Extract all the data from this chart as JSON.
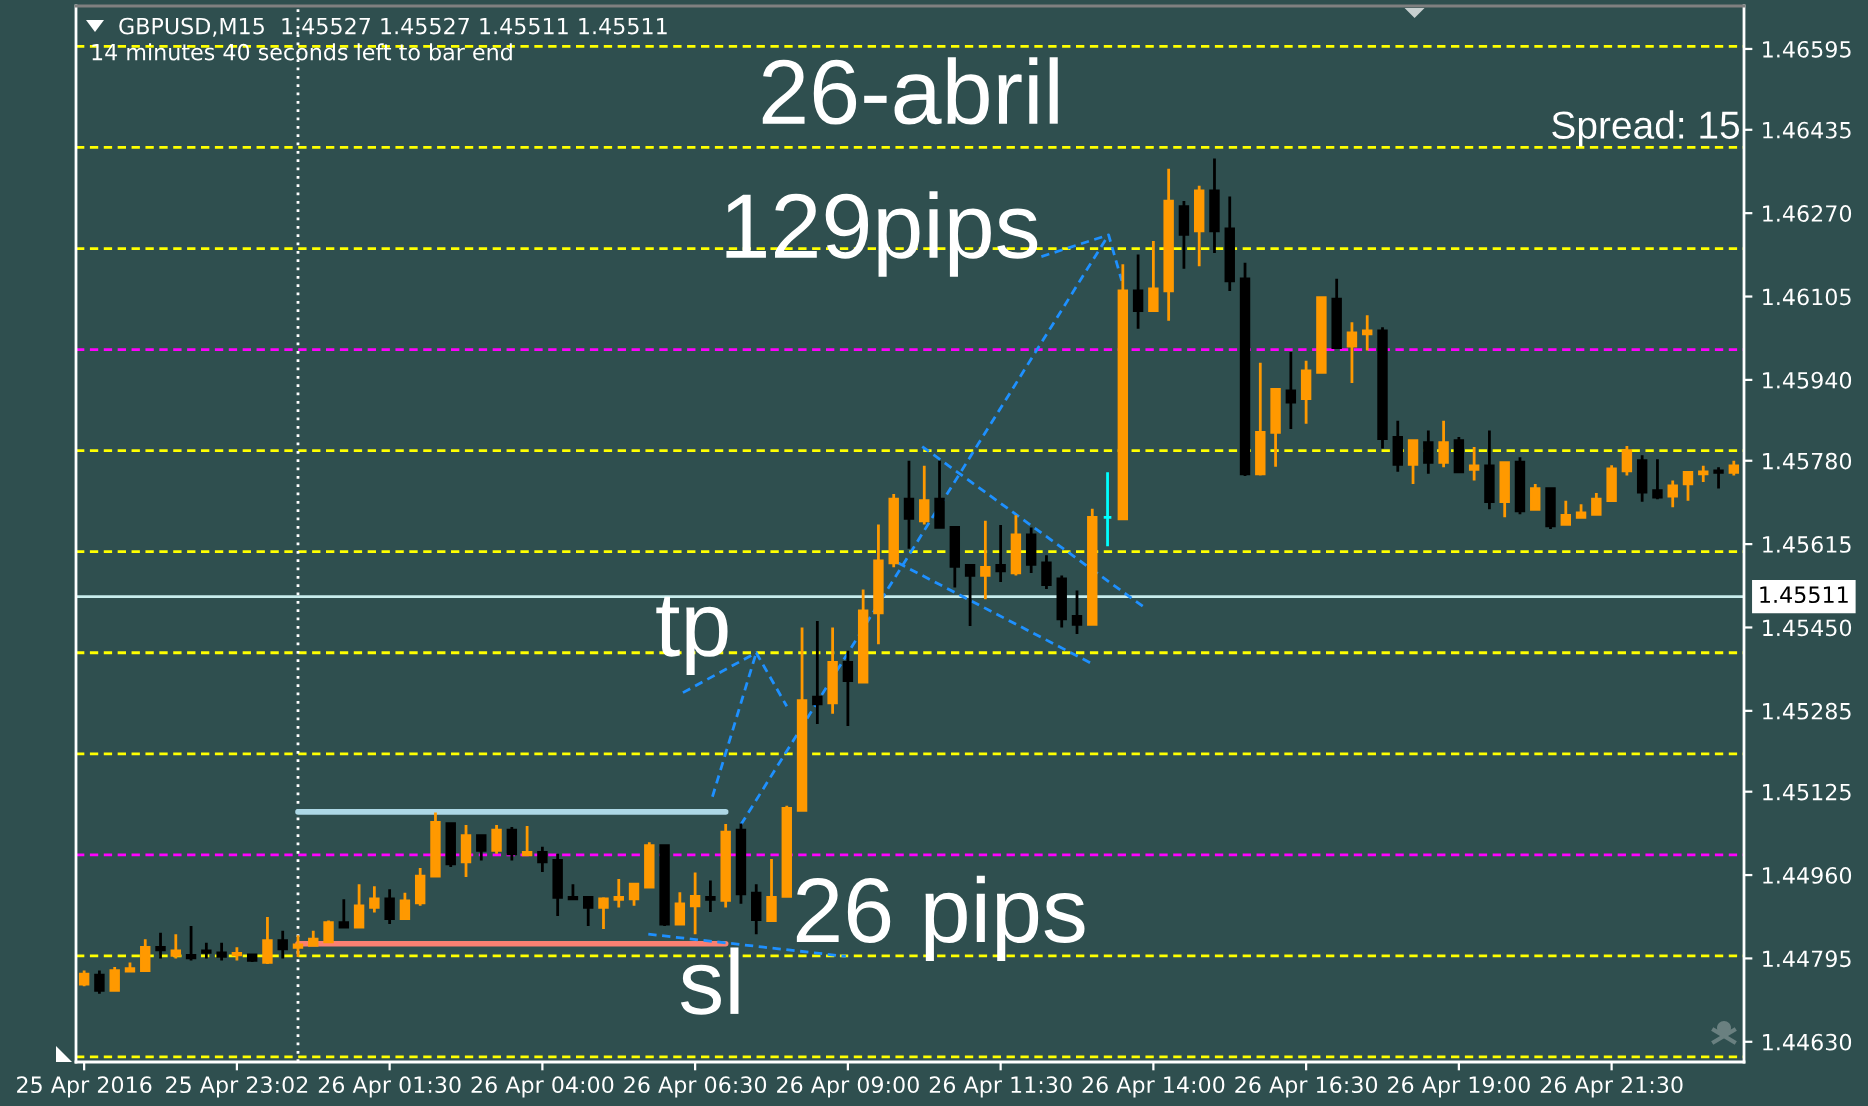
{
  "chart_data": {
    "type": "candlestick",
    "title": "GBPUSD,M15  1.45527 1.45527 1.45511 1.45511",
    "subtitle": "14 minutes 40 seconds left to bar end",
    "x": [
      "2016-04-25T20:30",
      "2016-04-25T20:45",
      "2016-04-25T21:00",
      "2016-04-25T21:15",
      "2016-04-25T21:30",
      "2016-04-25T21:45",
      "2016-04-25T22:00",
      "2016-04-25T22:15",
      "2016-04-25T22:30",
      "2016-04-25T22:45",
      "2016-04-25T23:00",
      "2016-04-25T23:15",
      "2016-04-25T23:30",
      "2016-04-25T23:45",
      "2016-04-26T00:00",
      "2016-04-26T00:15",
      "2016-04-26T00:30",
      "2016-04-26T00:45",
      "2016-04-26T01:00",
      "2016-04-26T01:15",
      "2016-04-26T01:30",
      "2016-04-26T01:45",
      "2016-04-26T02:00",
      "2016-04-26T02:15",
      "2016-04-26T02:30",
      "2016-04-26T02:45",
      "2016-04-26T03:00",
      "2016-04-26T03:15",
      "2016-04-26T03:30",
      "2016-04-26T03:45",
      "2016-04-26T04:00",
      "2016-04-26T04:15",
      "2016-04-26T04:30",
      "2016-04-26T04:45",
      "2016-04-26T05:00",
      "2016-04-26T05:15",
      "2016-04-26T05:30",
      "2016-04-26T05:45",
      "2016-04-26T06:00",
      "2016-04-26T06:15",
      "2016-04-26T06:30",
      "2016-04-26T06:45",
      "2016-04-26T07:00",
      "2016-04-26T07:15",
      "2016-04-26T07:30",
      "2016-04-26T07:45",
      "2016-04-26T08:00",
      "2016-04-26T08:15",
      "2016-04-26T08:30",
      "2016-04-26T08:45",
      "2016-04-26T09:00",
      "2016-04-26T09:15",
      "2016-04-26T09:30",
      "2016-04-26T09:45",
      "2016-04-26T10:00",
      "2016-04-26T10:15",
      "2016-04-26T10:30",
      "2016-04-26T10:45",
      "2016-04-26T11:00",
      "2016-04-26T11:15",
      "2016-04-26T11:30",
      "2016-04-26T11:45",
      "2016-04-26T12:00",
      "2016-04-26T12:15",
      "2016-04-26T12:30",
      "2016-04-26T12:45",
      "2016-04-26T13:00",
      "2016-04-26T13:15",
      "2016-04-26T13:30",
      "2016-04-26T13:45",
      "2016-04-26T14:00",
      "2016-04-26T14:15",
      "2016-04-26T14:30",
      "2016-04-26T14:45",
      "2016-04-26T15:00",
      "2016-04-26T15:15",
      "2016-04-26T15:30",
      "2016-04-26T15:45",
      "2016-04-26T16:00",
      "2016-04-26T16:15",
      "2016-04-26T16:30",
      "2016-04-26T16:45",
      "2016-04-26T17:00",
      "2016-04-26T17:15",
      "2016-04-26T17:30",
      "2016-04-26T17:45",
      "2016-04-26T18:00",
      "2016-04-26T18:15",
      "2016-04-26T18:30",
      "2016-04-26T18:45",
      "2016-04-26T19:00",
      "2016-04-26T19:15",
      "2016-04-26T19:30",
      "2016-04-26T19:45",
      "2016-04-26T20:00",
      "2016-04-26T20:15",
      "2016-04-26T20:30",
      "2016-04-26T20:45",
      "2016-04-26T21:00",
      "2016-04-26T21:15",
      "2016-04-26T21:30",
      "2016-04-26T21:45",
      "2016-04-26T22:00",
      "2016-04-26T22:15",
      "2016-04-26T22:30",
      "2016-04-26T22:45",
      "2016-04-26T23:00",
      "2016-04-26T23:15",
      "2016-04-26T23:30"
    ],
    "ohlc": [
      [
        1.44744,
        1.44771,
        1.4474,
        1.44764
      ],
      [
        1.44762,
        1.44771,
        1.44725,
        1.44732
      ],
      [
        1.44732,
        1.44778,
        1.44732,
        1.44771
      ],
      [
        1.4477,
        1.44787,
        1.4477,
        1.44775
      ],
      [
        1.44771,
        1.44833,
        1.44771,
        1.44817
      ],
      [
        1.44817,
        1.44846,
        1.44795,
        1.44812
      ],
      [
        1.44801,
        1.44843,
        1.44795,
        1.4481
      ],
      [
        1.44801,
        1.44859,
        1.44791,
        1.44796
      ],
      [
        1.4481,
        1.44826,
        1.44795,
        1.44807
      ],
      [
        1.44806,
        1.44826,
        1.44791,
        1.44799
      ],
      [
        1.44802,
        1.44817,
        1.44791,
        1.44805
      ],
      [
        1.44802,
        1.44804,
        1.44788,
        1.44791
      ],
      [
        1.44787,
        1.44877,
        1.44784,
        1.4483
      ],
      [
        1.4483,
        1.4485,
        1.44795,
        1.44814
      ],
      [
        1.44817,
        1.44841,
        1.44798,
        1.44822
      ],
      [
        1.44821,
        1.4485,
        1.44821,
        1.44833
      ],
      [
        1.44828,
        1.4487,
        1.44828,
        1.44866
      ],
      [
        1.44866,
        1.44912,
        1.44857,
        1.44857
      ],
      [
        1.44857,
        1.44942,
        1.44854,
        1.44899
      ],
      [
        1.44896,
        1.44938,
        1.44886,
        1.44913
      ],
      [
        1.44913,
        1.44932,
        1.44863,
        1.44874
      ],
      [
        1.44874,
        1.44925,
        1.44874,
        1.44909
      ],
      [
        1.44905,
        1.44974,
        1.44899,
        1.44958
      ],
      [
        1.44958,
        1.45084,
        1.44958,
        1.45064
      ],
      [
        1.45062,
        1.45064,
        1.44976,
        1.44982
      ],
      [
        1.44986,
        1.45059,
        1.44956,
        1.45038
      ],
      [
        1.45038,
        1.45038,
        1.44989,
        1.45009
      ],
      [
        1.45009,
        1.45059,
        1.45002,
        1.45049
      ],
      [
        1.45049,
        1.45055,
        1.44989,
        1.45002
      ],
      [
        1.45,
        1.45057,
        1.45,
        1.45005
      ],
      [
        1.45005,
        1.45016,
        1.44966,
        1.44986
      ],
      [
        1.44989,
        1.45002,
        1.44879,
        1.44916
      ],
      [
        1.44916,
        1.44942,
        1.4491,
        1.44913
      ],
      [
        1.44916,
        1.44916,
        1.44859,
        1.44896
      ],
      [
        1.44896,
        1.44916,
        1.44853,
        1.44913
      ],
      [
        1.44912,
        1.44952,
        1.44896,
        1.44916
      ],
      [
        1.44913,
        1.44942,
        1.44899,
        1.44942
      ],
      [
        1.44936,
        1.45025,
        1.44936,
        1.45018
      ],
      [
        1.45018,
        1.45018,
        1.44859,
        1.44863
      ],
      [
        1.44863,
        1.44926,
        1.44861,
        1.44903
      ],
      [
        1.44899,
        1.44965,
        1.44843,
        1.44918
      ],
      [
        1.44916,
        1.44949,
        1.44887,
        1.44912
      ],
      [
        1.4491,
        1.45061,
        1.44896,
        1.45045
      ],
      [
        1.45049,
        1.45062,
        1.44903,
        1.44923
      ],
      [
        1.44924,
        1.44942,
        1.44843,
        1.44872
      ],
      [
        1.4487,
        1.44992,
        1.4487,
        1.44916
      ],
      [
        1.44918,
        1.45097,
        1.44918,
        1.45092
      ],
      [
        1.45088,
        1.4545,
        1.45088,
        1.45305
      ],
      [
        1.45312,
        1.45463,
        1.45259,
        1.45299
      ],
      [
        1.45301,
        1.4545,
        1.45279,
        1.45381
      ],
      [
        1.45381,
        1.45404,
        1.45255,
        1.45345
      ],
      [
        1.45342,
        1.45525,
        1.45342,
        1.45483
      ],
      [
        1.45479,
        1.45654,
        1.45417,
        1.45582
      ],
      [
        1.45578,
        1.45714,
        1.45569,
        1.45704
      ],
      [
        1.45704,
        1.4578,
        1.45606,
        1.45666
      ],
      [
        1.45661,
        1.4577,
        1.45654,
        1.45701
      ],
      [
        1.45704,
        1.4578,
        1.45648,
        1.45648
      ],
      [
        1.45648,
        1.45648,
        1.45529,
        1.45571
      ],
      [
        1.45573,
        1.45573,
        1.45453,
        1.45553
      ],
      [
        1.45553,
        1.45661,
        1.45506,
        1.45569
      ],
      [
        1.45573,
        1.45653,
        1.4554,
        1.45562
      ],
      [
        1.45558,
        1.45672,
        1.45553,
        1.45633
      ],
      [
        1.45633,
        1.45648,
        1.45558,
        1.45575
      ],
      [
        1.45578,
        1.45593,
        1.45526,
        1.45535
      ],
      [
        1.45546,
        1.45553,
        1.4545,
        1.45467
      ],
      [
        1.45472,
        1.45523,
        1.45437,
        1.45456
      ],
      [
        1.45456,
        1.45685,
        1.45456,
        1.45668
      ],
      [
        1.45668,
        1.45757,
        1.45611,
        1.45668
      ],
      [
        1.45665,
        1.46169,
        1.45665,
        1.46116
      ],
      [
        1.46116,
        1.46188,
        1.46041,
        1.46077
      ],
      [
        1.46077,
        1.46215,
        1.46077,
        1.4612
      ],
      [
        1.46116,
        1.46358,
        1.46057,
        1.46294
      ],
      [
        1.46283,
        1.46294,
        1.4616,
        1.46228
      ],
      [
        1.46235,
        1.46324,
        1.46165,
        1.46314
      ],
      [
        1.46314,
        1.46378,
        1.46191,
        1.46235
      ],
      [
        1.46239,
        1.46303,
        1.46116,
        1.46136
      ],
      [
        1.4614,
        1.46172,
        1.4575,
        1.45754
      ],
      [
        1.45754,
        1.45974,
        1.45751,
        1.45836
      ],
      [
        1.45836,
        1.45921,
        1.45768,
        1.45921
      ],
      [
        1.45918,
        1.45995,
        1.45843,
        1.45896
      ],
      [
        1.45903,
        1.45978,
        1.45853,
        1.45958
      ],
      [
        1.45955,
        1.46103,
        1.45955,
        1.46103
      ],
      [
        1.461,
        1.4614,
        1.46004,
        1.46004
      ],
      [
        1.46007,
        1.46054,
        1.45934,
        1.46033
      ],
      [
        1.46031,
        1.46068,
        1.45998,
        1.46037
      ],
      [
        1.46037,
        1.46044,
        1.45804,
        1.45824
      ],
      [
        1.45826,
        1.45859,
        1.45758,
        1.45773
      ],
      [
        1.45773,
        1.4582,
        1.45734,
        1.4582
      ],
      [
        1.45816,
        1.4584,
        1.45754,
        1.45777
      ],
      [
        1.45777,
        1.45859,
        1.45767,
        1.45816
      ],
      [
        1.4582,
        1.45827,
        1.45758,
        1.45758
      ],
      [
        1.45763,
        1.45807,
        1.45741,
        1.4577
      ],
      [
        1.4577,
        1.4584,
        1.45684,
        1.45699
      ],
      [
        1.45699,
        1.45776,
        1.45668,
        1.45776
      ],
      [
        1.45777,
        1.45787,
        1.45674,
        1.45681
      ],
      [
        1.45684,
        1.45734,
        1.45684,
        1.45725
      ],
      [
        1.45725,
        1.45725,
        1.45645,
        1.45651
      ],
      [
        1.45654,
        1.45701,
        1.45652,
        1.45672
      ],
      [
        1.45668,
        1.45694,
        1.45665,
        1.45677
      ],
      [
        1.45674,
        1.45716,
        1.45674,
        1.45704
      ],
      [
        1.45701,
        1.45771,
        1.45699,
        1.45764
      ],
      [
        1.4576,
        1.45809,
        1.45751,
        1.458
      ],
      [
        1.4578,
        1.45791,
        1.45699,
        1.45718
      ],
      [
        1.45721,
        1.45783,
        1.45704,
        1.45708
      ],
      [
        1.4571,
        1.45741,
        1.45688,
        1.4573
      ],
      [
        1.45734,
        1.45757,
        1.45701,
        1.45757
      ],
      [
        1.45754,
        1.4577,
        1.45738,
        1.45758
      ],
      [
        1.4576,
        1.45767,
        1.45725,
        1.45757
      ],
      [
        1.45757,
        1.4578,
        1.45751,
        1.4577
      ]
    ],
    "colors": [
      "#ff9900",
      "#000000",
      "#ff9900",
      "#ff9900",
      "#ff9900",
      "#000000",
      "#ff9900",
      "#000000",
      "#000000",
      "#000000",
      "#ff9900",
      "#000000",
      "#ff9900",
      "#000000",
      "#ff9900",
      "#ff9900",
      "#ff9900",
      "#000000",
      "#ff9900",
      "#ff9900",
      "#000000",
      "#ff9900",
      "#ff9900",
      "#ff9900",
      "#000000",
      "#ff9900",
      "#000000",
      "#ff9900",
      "#000000",
      "#ff9900",
      "#000000",
      "#000000",
      "#000000",
      "#000000",
      "#ff9900",
      "#ff9900",
      "#ff9900",
      "#ff9900",
      "#000000",
      "#ff9900",
      "#ff9900",
      "#000000",
      "#ff9900",
      "#000000",
      "#000000",
      "#ff9900",
      "#ff9900",
      "#ff9900",
      "#000000",
      "#ff9900",
      "#000000",
      "#ff9900",
      "#ff9900",
      "#ff9900",
      "#000000",
      "#ff9900",
      "#000000",
      "#000000",
      "#000000",
      "#ff9900",
      "#000000",
      "#ff9900",
      "#000000",
      "#000000",
      "#000000",
      "#000000",
      "#ff9900",
      "#00ffff",
      "#ff9900",
      "#000000",
      "#ff9900",
      "#ff9900",
      "#000000",
      "#ff9900",
      "#000000",
      "#000000",
      "#000000",
      "#ff9900",
      "#ff9900",
      "#000000",
      "#ff9900",
      "#ff9900",
      "#000000",
      "#ff9900",
      "#ff9900",
      "#000000",
      "#000000",
      "#ff9900",
      "#000000",
      "#ff9900",
      "#000000",
      "#ff9900",
      "#000000",
      "#ff9900",
      "#000000",
      "#ff9900",
      "#000000",
      "#ff9900",
      "#ff9900",
      "#ff9900",
      "#ff9900",
      "#ff9900",
      "#000000",
      "#000000",
      "#ff9900",
      "#ff9900",
      "#ff9900",
      "#000000",
      "#ff9900"
    ],
    "series": [
      {
        "type": "line",
        "color": "#add8e6",
        "line_style": "solid",
        "x": [
          "2016-04-26T00:00",
          "2016-04-26T07:00"
        ],
        "values": [
          1.45085,
          1.45085
        ]
      },
      {
        "type": "line",
        "color": "#fa8072",
        "line_style": "solid",
        "x": [
          "2016-04-26T00:00",
          "2016-04-26T07:00"
        ],
        "values": [
          1.44824,
          1.44824
        ]
      },
      {
        "type": "line",
        "color": "#1e90ff",
        "line_style": "dashed",
        "x": [
          "2016-04-26T06:18",
          "2016-04-26T07:30",
          "2016-04-26T08:00"
        ],
        "values": [
          1.45321,
          1.454,
          1.45294
        ]
      },
      {
        "type": "line",
        "color": "#1e90ff",
        "line_style": "dashed",
        "x": [
          "2016-04-26T06:47",
          "2016-04-26T07:30"
        ],
        "values": [
          1.45115,
          1.454
        ]
      },
      {
        "type": "line",
        "color": "#1e90ff",
        "line_style": "dashed",
        "x": [
          "2016-04-26T07:15",
          "2016-04-26T13:16"
        ],
        "values": [
          1.4506,
          1.46227
        ]
      },
      {
        "type": "line",
        "color": "#1e90ff",
        "line_style": "dashed",
        "x": [
          "2016-04-26T12:10",
          "2016-04-26T13:16",
          "2016-04-26T13:29"
        ],
        "values": [
          1.46184,
          1.46227,
          1.46136
        ]
      },
      {
        "type": "line",
        "color": "#1e90ff",
        "line_style": "dashed",
        "x": [
          "2016-04-26T10:13",
          "2016-04-26T13:53"
        ],
        "values": [
          1.45808,
          1.45487
        ]
      },
      {
        "type": "line",
        "color": "#1e90ff",
        "line_style": "dashed",
        "x": [
          "2016-04-26T09:49",
          "2016-04-26T13:01"
        ],
        "values": [
          1.45578,
          1.45377
        ]
      },
      {
        "type": "line",
        "color": "#1e90ff",
        "line_style": "dashed",
        "x": [
          "2016-04-26T05:44",
          "2016-04-26T08:58"
        ],
        "values": [
          1.44843,
          1.44799
        ]
      }
    ],
    "ref_lines": [
      {
        "axis": "y",
        "value": 1.466,
        "color": "#ffff00",
        "line_style": "dashed"
      },
      {
        "axis": "y",
        "value": 1.464,
        "color": "#ffff00",
        "line_style": "dashed"
      },
      {
        "axis": "y",
        "value": 1.462,
        "color": "#ffff00",
        "line_style": "dashed"
      },
      {
        "axis": "y",
        "value": 1.46,
        "color": "#ff00ff",
        "line_style": "dashed"
      },
      {
        "axis": "y",
        "value": 1.458,
        "color": "#ffff00",
        "line_style": "dashed"
      },
      {
        "axis": "y",
        "value": 1.456,
        "color": "#ffff00",
        "line_style": "dashed"
      },
      {
        "axis": "y",
        "value": 1.454,
        "color": "#ffff00",
        "line_style": "dashed"
      },
      {
        "axis": "y",
        "value": 1.452,
        "color": "#ffff00",
        "line_style": "dashed"
      },
      {
        "axis": "y",
        "value": 1.45,
        "color": "#ff00ff",
        "line_style": "dashed"
      },
      {
        "axis": "y",
        "value": 1.448,
        "color": "#ffff00",
        "line_style": "dashed"
      },
      {
        "axis": "y",
        "value": 1.446,
        "color": "#ffff00",
        "line_style": "dashed"
      },
      {
        "axis": "y",
        "value": 1.45511,
        "color": "#c8ecec",
        "line_style": "solid",
        "label": "1.45511"
      },
      {
        "axis": "x",
        "value": "2016-04-26T00:00",
        "color": "#ffffff",
        "line_style": "dotted"
      }
    ],
    "annotations": [
      "26-abril",
      "129pips",
      "Spread: 15",
      "tp",
      "26 pips",
      "sl"
    ],
    "xlim": [
      "2016-04-25T20:22",
      "2016-04-26T23:40"
    ],
    "xticks": [
      {
        "value": "2016-04-25T20:30",
        "label": "25 Apr 2016"
      },
      {
        "value": "2016-04-25T23:00",
        "label": "25 Apr 23:02"
      },
      {
        "value": "2016-04-26T01:30",
        "label": "26 Apr 01:30"
      },
      {
        "value": "2016-04-26T04:00",
        "label": "26 Apr 04:00"
      },
      {
        "value": "2016-04-26T06:30",
        "label": "26 Apr 06:30"
      },
      {
        "value": "2016-04-26T09:00",
        "label": "26 Apr 09:00"
      },
      {
        "value": "2016-04-26T11:30",
        "label": "26 Apr 11:30"
      },
      {
        "value": "2016-04-26T14:00",
        "label": "26 Apr 14:00"
      },
      {
        "value": "2016-04-26T16:30",
        "label": "26 Apr 16:30"
      },
      {
        "value": "2016-04-26T19:00",
        "label": "26 Apr 19:00"
      },
      {
        "value": "2016-04-26T21:30",
        "label": "26 Apr 21:30"
      }
    ],
    "ylim": [
      1.4459,
      1.4668
    ],
    "yticks": [
      1.46595,
      1.46435,
      {
        "value": 1.4627,
        "label": "1.46270"
      },
      1.46105,
      {
        "value": 1.4594,
        "label": "1.45940"
      },
      {
        "value": 1.4578,
        "label": "1.45780"
      },
      1.45615,
      {
        "value": 1.4545,
        "label": "1.45450"
      },
      1.45285,
      1.45125,
      {
        "value": 1.4496,
        "label": "1.44960"
      },
      1.44795,
      {
        "value": 1.4463,
        "label": "1.44630"
      }
    ]
  }
}
